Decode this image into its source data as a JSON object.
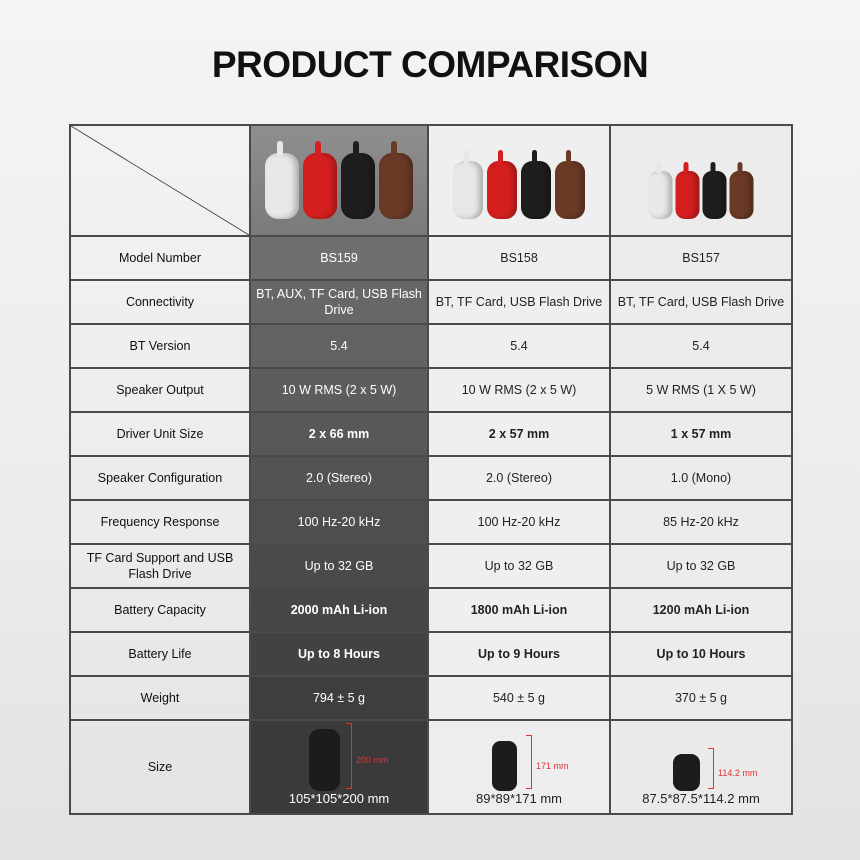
{
  "title": "PRODUCT COMPARISON",
  "colors": {
    "highlight_column": "#5a5a5a",
    "dimension_line": "#dd3333",
    "speaker_colors": [
      "#e8e8e8",
      "#d51f1f",
      "#1e1e1e",
      "#6b3a26"
    ]
  },
  "products": [
    {
      "image": "four-speakers-white-red-black-brown"
    },
    {
      "image": "four-speakers-white-red-black-brown"
    },
    {
      "image": "four-speakers-white-red-black-brown"
    }
  ],
  "rows": [
    {
      "label": "Model Number",
      "values": [
        "BS159",
        "BS158",
        "BS157"
      ],
      "bold": false
    },
    {
      "label": "Connectivity",
      "values": [
        "BT, AUX, TF Card, USB Flash Drive",
        "BT, TF Card, USB Flash Drive",
        "BT, TF Card, USB Flash Drive"
      ],
      "bold": false
    },
    {
      "label": "BT Version",
      "values": [
        "5.4",
        "5.4",
        "5.4"
      ],
      "bold": false
    },
    {
      "label": "Speaker Output",
      "values": [
        "10 W RMS (2 x 5 W)",
        "10 W RMS (2 x 5 W)",
        "5 W RMS (1 X 5 W)"
      ],
      "bold": false
    },
    {
      "label": "Driver Unit Size",
      "values": [
        "2 x 66 mm",
        "2 x 57 mm",
        "1 x 57 mm"
      ],
      "bold": true
    },
    {
      "label": "Speaker Configuration",
      "values": [
        "2.0 (Stereo)",
        "2.0 (Stereo)",
        "1.0 (Mono)"
      ],
      "bold": false
    },
    {
      "label": "Frequency Response",
      "values": [
        "100 Hz-20 kHz",
        "100 Hz-20 kHz",
        "85 Hz-20 kHz"
      ],
      "bold": false
    },
    {
      "label": "TF Card Support and USB Flash Drive",
      "values": [
        "Up to 32 GB",
        "Up to 32 GB",
        "Up to 32 GB"
      ],
      "bold": false
    },
    {
      "label": "Battery Capacity",
      "values": [
        "2000 mAh Li-ion",
        "1800 mAh Li-ion",
        "1200 mAh Li-ion"
      ],
      "bold": true
    },
    {
      "label": "Battery Life",
      "values": [
        "Up to 8 Hours",
        "Up to 9 Hours",
        "Up to 10 Hours"
      ],
      "bold": true
    },
    {
      "label": "Weight",
      "values": [
        "794 ± 5 g",
        "540 ± 5 g",
        "370 ± 5 g"
      ],
      "bold": false
    }
  ],
  "size_row": {
    "label": "Size",
    "heights": [
      "200 mm",
      "171 mm",
      "114.2 mm"
    ],
    "dimensions": [
      "105*105*200 mm",
      "89*89*171 mm",
      "87.5*87.5*114.2 mm"
    ]
  }
}
